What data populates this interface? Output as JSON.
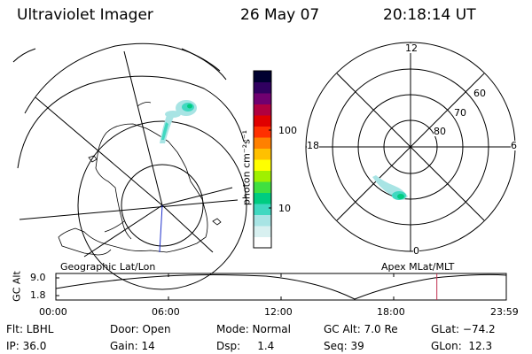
{
  "header": {
    "instrument": "Ultraviolet Imager",
    "date": "26 May 07",
    "time": "20:18:14 UT"
  },
  "geo_plot": {
    "label": "Geographic Lat/Lon"
  },
  "colorbar": {
    "unit": "photon cm⁻²s⁻¹",
    "ticks": [
      "100",
      "10"
    ],
    "colors": [
      "#ffffff",
      "#d8f0f0",
      "#a8e4e4",
      "#40d8c0",
      "#00cc80",
      "#40e040",
      "#a0f000",
      "#ffff00",
      "#ffc000",
      "#ff8000",
      "#ff3000",
      "#e00000",
      "#b00040",
      "#700070",
      "#300060",
      "#000030"
    ]
  },
  "polar_plot": {
    "label": "Apex MLat/MLT",
    "hour_labels": {
      "top": "12",
      "bottom": "0",
      "left": "18",
      "right": "6"
    },
    "lat_labels": [
      "60",
      "70",
      "80"
    ]
  },
  "timeline": {
    "y_axis_label": "GC Alt",
    "y_ticks": [
      "9.0",
      "1.8"
    ],
    "x_ticks": [
      "00:00",
      "06:00",
      "12:00",
      "18:00",
      "23:59"
    ],
    "current_time_hours": 20.3
  },
  "footer": {
    "row1": [
      {
        "key": "flt",
        "text": "Flt: LBHL"
      },
      {
        "key": "door",
        "text": "Door: Open"
      },
      {
        "key": "mode",
        "text": "Mode: Normal"
      },
      {
        "key": "gcalt",
        "text": "GC Alt: 7.0 Re"
      },
      {
        "key": "glat",
        "text": "GLat: −74.2"
      }
    ],
    "row2": [
      {
        "key": "ip",
        "text": "IP: 36.0"
      },
      {
        "key": "gain",
        "text": "Gain: 14"
      },
      {
        "key": "dsp",
        "text": "Dsp:     1.4"
      },
      {
        "key": "seq",
        "text": "Seq: 39"
      },
      {
        "key": "glon",
        "text": "GLon:  12.3"
      }
    ]
  }
}
